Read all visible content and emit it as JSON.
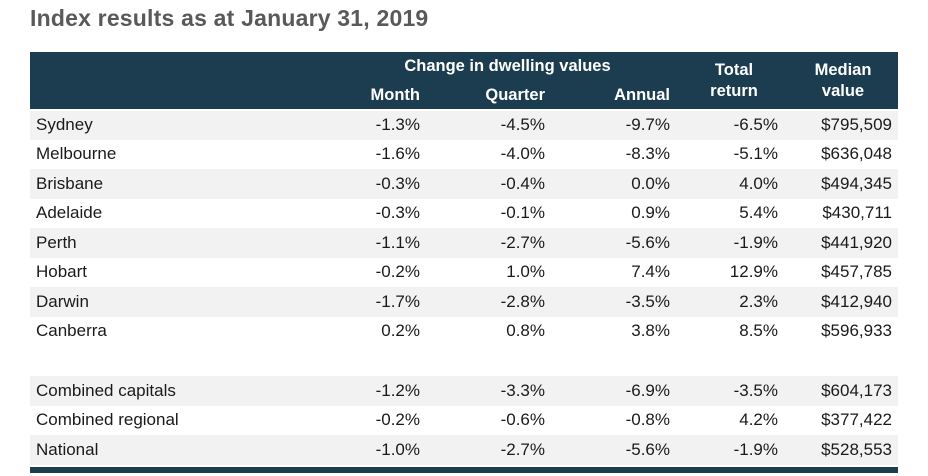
{
  "page_title": "Index results as at January 31, 2019",
  "colors": {
    "header_bg": "#1b3d4f",
    "header_text": "#ffffff",
    "stripe_bg": "#f2f2f2",
    "body_text": "#1a1a1a",
    "title_text": "#595959",
    "bottom_bar": "#1b3d4f"
  },
  "chart_data": {
    "type": "table",
    "title": "Index results as at January 31, 2019",
    "column_group": "Change in dwelling values",
    "columns": [
      "",
      "Month",
      "Quarter",
      "Annual",
      "Total return",
      "Median value"
    ],
    "header": {
      "group": "Change in dwelling values",
      "col_month": "Month",
      "col_quarter": "Quarter",
      "col_annual": "Annual",
      "col_total_line1": "Total",
      "col_total_line2": "return",
      "col_median_line1": "Median",
      "col_median_line2": "value"
    },
    "rows": [
      {
        "region": "Sydney",
        "month": "-1.3%",
        "quarter": "-4.5%",
        "annual": "-9.7%",
        "total_return": "-6.5%",
        "median_value": "$795,509"
      },
      {
        "region": "Melbourne",
        "month": "-1.6%",
        "quarter": "-4.0%",
        "annual": "-8.3%",
        "total_return": "-5.1%",
        "median_value": "$636,048"
      },
      {
        "region": "Brisbane",
        "month": "-0.3%",
        "quarter": "-0.4%",
        "annual": "0.0%",
        "total_return": "4.0%",
        "median_value": "$494,345"
      },
      {
        "region": "Adelaide",
        "month": "-0.3%",
        "quarter": "-0.1%",
        "annual": "0.9%",
        "total_return": "5.4%",
        "median_value": "$430,711"
      },
      {
        "region": "Perth",
        "month": "-1.1%",
        "quarter": "-2.7%",
        "annual": "-5.6%",
        "total_return": "-1.9%",
        "median_value": "$441,920"
      },
      {
        "region": "Hobart",
        "month": "-0.2%",
        "quarter": "1.0%",
        "annual": "7.4%",
        "total_return": "12.9%",
        "median_value": "$457,785"
      },
      {
        "region": "Darwin",
        "month": "-1.7%",
        "quarter": "-2.8%",
        "annual": "-3.5%",
        "total_return": "2.3%",
        "median_value": "$412,940"
      },
      {
        "region": "Canberra",
        "month": "0.2%",
        "quarter": "0.8%",
        "annual": "3.8%",
        "total_return": "8.5%",
        "median_value": "$596,933"
      }
    ],
    "summary_rows": [
      {
        "region": "Combined capitals",
        "month": "-1.2%",
        "quarter": "-3.3%",
        "annual": "-6.9%",
        "total_return": "-3.5%",
        "median_value": "$604,173"
      },
      {
        "region": "Combined regional",
        "month": "-0.2%",
        "quarter": "-0.6%",
        "annual": "-0.8%",
        "total_return": "4.2%",
        "median_value": "$377,422"
      },
      {
        "region": "National",
        "month": "-1.0%",
        "quarter": "-2.7%",
        "annual": "-5.6%",
        "total_return": "-1.9%",
        "median_value": "$528,553"
      }
    ]
  }
}
